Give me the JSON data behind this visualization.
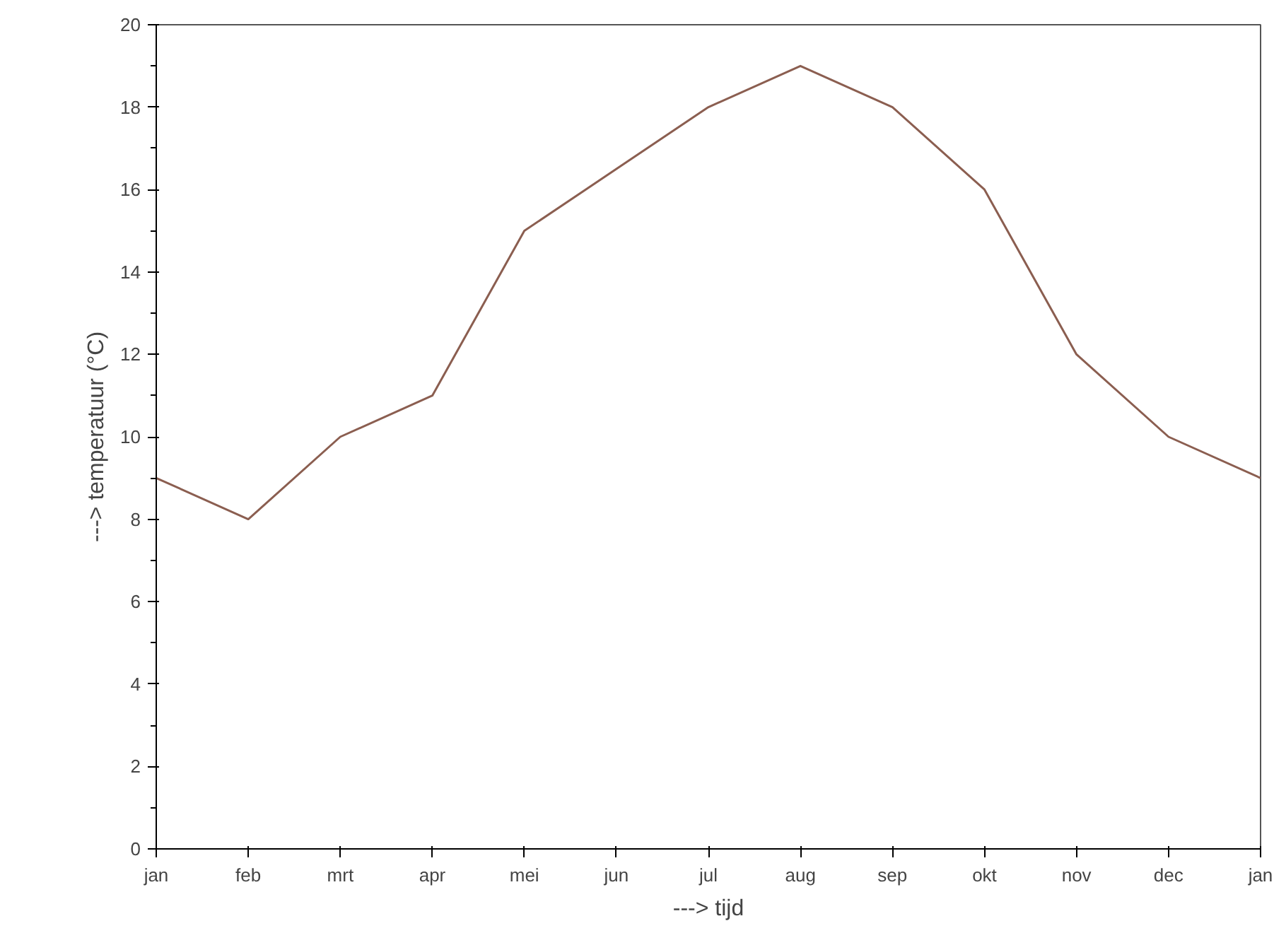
{
  "chart_data": {
    "type": "line",
    "xlabel": "---> tijd",
    "ylabel": "---> temperatuur (°C)",
    "categories": [
      "jan",
      "feb",
      "mrt",
      "apr",
      "mei",
      "jun",
      "jul",
      "aug",
      "sep",
      "okt",
      "nov",
      "dec",
      "jan"
    ],
    "series": [
      {
        "color": "#8b5e50",
        "values": [
          9,
          8,
          10,
          11,
          15,
          16.5,
          18,
          19,
          18,
          16,
          12,
          10,
          9
        ]
      }
    ],
    "ylim": [
      0,
      20
    ],
    "yticks": [
      0,
      2,
      4,
      6,
      8,
      10,
      12,
      14,
      16,
      18,
      20
    ],
    "grid": false,
    "marker": "none",
    "line_style": "solid"
  }
}
